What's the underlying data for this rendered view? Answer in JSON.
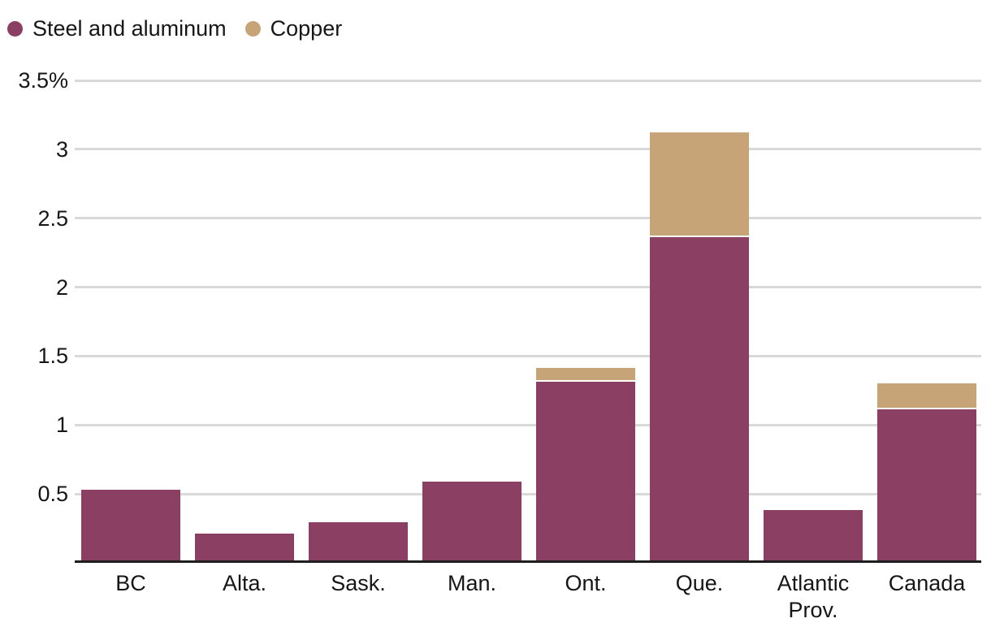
{
  "chart_data": {
    "type": "bar",
    "stacked": true,
    "title": "",
    "categories": [
      "BC",
      "Alta.",
      "Sask.",
      "Man.",
      "Ont.",
      "Que.",
      "Atlantic Prov.",
      "Canada"
    ],
    "series": [
      {
        "name": "Steel and aluminum",
        "color": "#8b3f63",
        "values": [
          0.52,
          0.2,
          0.28,
          0.58,
          1.3,
          2.35,
          0.37,
          1.1
        ]
      },
      {
        "name": "Copper",
        "color": "#c7a378",
        "values": [
          0,
          0,
          0,
          0,
          0.1,
          0.76,
          0,
          0.19
        ]
      }
    ],
    "totals": [
      0.52,
      0.2,
      0.28,
      0.58,
      1.4,
      3.11,
      0.37,
      1.29
    ],
    "unit": "%",
    "ylim": [
      0,
      3.5
    ],
    "yticks": [
      {
        "value": 3.5,
        "label": "3.5%"
      },
      {
        "value": 3,
        "label": "3"
      },
      {
        "value": 2.5,
        "label": "2.5"
      },
      {
        "value": 2,
        "label": "2"
      },
      {
        "value": 1.5,
        "label": "1.5"
      },
      {
        "value": 1,
        "label": "1"
      },
      {
        "value": 0.5,
        "label": "0.5"
      }
    ],
    "xlabel": "",
    "ylabel": "",
    "grid": "horizontal",
    "legend_position": "top-left",
    "colors": {
      "steel_and_aluminum": "#8b3f63",
      "copper": "#c7a378",
      "axis_line": "#1e1e1e",
      "gridline": "#d9d9d9",
      "text": "#161616",
      "background": "#ffffff",
      "segment_separator": "#ffffff"
    }
  }
}
